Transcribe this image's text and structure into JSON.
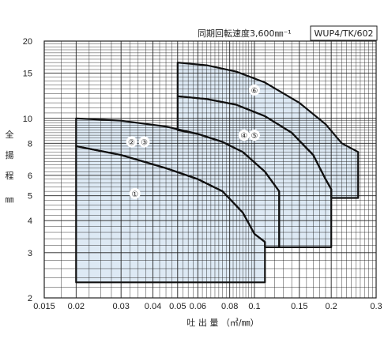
{
  "chart_data": {
    "type": "area",
    "subtitle": "同期回転速度3,600㎜⁻¹",
    "model": "WUP4/TK/602",
    "xlabel": "吐 出 量 （㎥/㎜）",
    "ylabel": [
      "全",
      "揚",
      "程",
      "㎜"
    ],
    "xscale": "log",
    "yscale": "log",
    "xlim": [
      0.015,
      0.3
    ],
    "ylim": [
      2,
      20
    ],
    "grid": true,
    "x_ticks": [
      0.015,
      0.02,
      0.03,
      0.04,
      0.05,
      0.06,
      0.08,
      0.1,
      0.15,
      0.2,
      0.3
    ],
    "x_tick_labels": [
      "0.015",
      "0.02",
      "0.03",
      "0.04",
      "0.05",
      "0.06",
      "0.08",
      "0.1",
      "0.15",
      "0.2",
      "0.3"
    ],
    "y_ticks": [
      2,
      3,
      4,
      5,
      6,
      8,
      10,
      15,
      20
    ],
    "y_tick_labels": [
      "2",
      "3",
      "4",
      "5",
      "6",
      "8",
      "10",
      "15",
      "20"
    ],
    "fill_color": "#dde9f4",
    "zones": [
      {
        "label": "①",
        "points": [
          [
            0.02,
            2.3
          ],
          [
            0.02,
            7.8
          ],
          [
            0.03,
            7.2
          ],
          [
            0.045,
            6.4
          ],
          [
            0.06,
            5.8
          ],
          [
            0.075,
            5.2
          ],
          [
            0.09,
            4.3
          ],
          [
            0.1,
            3.55
          ],
          [
            0.11,
            3.3
          ],
          [
            0.11,
            2.3
          ]
        ]
      },
      {
        "label": "②③",
        "points": [
          [
            0.02,
            7.8
          ],
          [
            0.02,
            10
          ],
          [
            0.03,
            9.8
          ],
          [
            0.045,
            9.3
          ],
          [
            0.06,
            8.7
          ],
          [
            0.075,
            8.1
          ],
          [
            0.09,
            7.4
          ],
          [
            0.11,
            6.2
          ],
          [
            0.125,
            5.2
          ],
          [
            0.125,
            3.15
          ],
          [
            0.11,
            3.15
          ],
          [
            0.11,
            3.3
          ],
          [
            0.1,
            3.55
          ],
          [
            0.09,
            4.3
          ],
          [
            0.075,
            5.2
          ],
          [
            0.06,
            5.8
          ],
          [
            0.045,
            6.4
          ],
          [
            0.03,
            7.2
          ]
        ]
      },
      {
        "label": "④⑤",
        "points": [
          [
            0.05,
            12.2
          ],
          [
            0.065,
            11.9
          ],
          [
            0.085,
            11.3
          ],
          [
            0.11,
            10.2
          ],
          [
            0.14,
            8.8
          ],
          [
            0.17,
            7.2
          ],
          [
            0.19,
            5.8
          ],
          [
            0.2,
            5.3
          ],
          [
            0.2,
            3.15
          ],
          [
            0.125,
            3.15
          ],
          [
            0.125,
            5.2
          ],
          [
            0.11,
            6.2
          ],
          [
            0.09,
            7.4
          ],
          [
            0.075,
            8.1
          ],
          [
            0.06,
            8.7
          ],
          [
            0.05,
            9.0
          ]
        ]
      },
      {
        "label": "⑥",
        "points": [
          [
            0.05,
            16.5
          ],
          [
            0.065,
            16.1
          ],
          [
            0.085,
            15.2
          ],
          [
            0.11,
            13.8
          ],
          [
            0.15,
            11.5
          ],
          [
            0.19,
            9.5
          ],
          [
            0.22,
            8.0
          ],
          [
            0.255,
            7.4
          ],
          [
            0.255,
            4.9
          ],
          [
            0.2,
            4.9
          ],
          [
            0.2,
            5.3
          ],
          [
            0.19,
            5.8
          ],
          [
            0.17,
            7.2
          ],
          [
            0.14,
            8.8
          ],
          [
            0.11,
            10.2
          ],
          [
            0.085,
            11.3
          ],
          [
            0.065,
            11.9
          ],
          [
            0.05,
            12.2
          ]
        ]
      }
    ],
    "zone_label_positions": [
      {
        "label": "①",
        "x": 0.034,
        "y": 5.1
      },
      {
        "label": "②",
        "x": 0.033,
        "y": 8.1
      },
      {
        "label": "③",
        "x": 0.037,
        "y": 8.1
      },
      {
        "label": "④",
        "x": 0.091,
        "y": 8.6
      },
      {
        "label": "⑤",
        "x": 0.1,
        "y": 8.6
      },
      {
        "label": "⑥",
        "x": 0.1,
        "y": 12.9
      }
    ]
  }
}
